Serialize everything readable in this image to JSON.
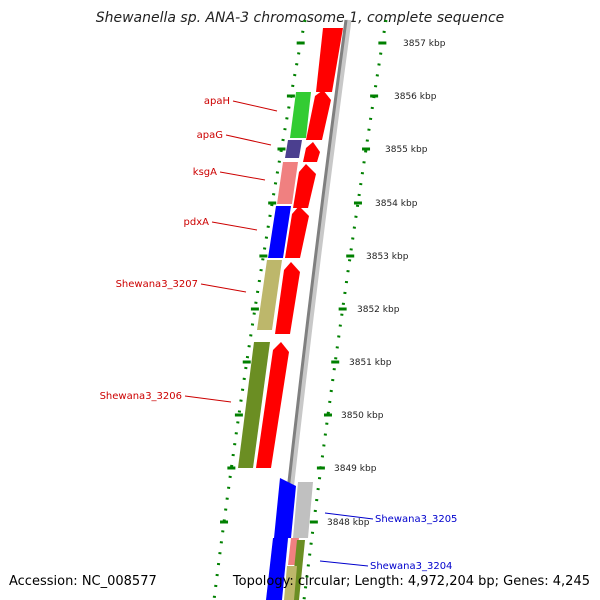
{
  "title": "Shewanella sp. ANA-3 chromosome 1, complete sequence",
  "footer": {
    "accession": "Accession: NC_008577",
    "topology": "Topology: circular; Length: 4,972,204 bp; Genes: 4,245"
  },
  "ruler": {
    "ticks": [
      "3857 kbp",
      "3856 kbp",
      "3855 kbp",
      "3854 kbp",
      "3853 kbp",
      "3852 kbp",
      "3851 kbp",
      "3850 kbp",
      "3849 kbp",
      "3848 kbp"
    ]
  },
  "colors": {
    "cds_red": "#ff0000",
    "apaH": "#33cc33",
    "apaG": "#4b3f8f",
    "ksgA": "#f08080",
    "pdxA": "#0000ff",
    "Shewana3_3207": "#bdb76b",
    "Shewana3_3206": "#6b8e23",
    "Shewana3_3205": "#0000ff",
    "gray_gene": "#c0c0c0",
    "backbone": "#808080",
    "ruler_dots": "#008000",
    "label_red": "#cc0000",
    "label_blue": "#0000cc"
  },
  "genes": [
    {
      "name": "apaH",
      "label": "apaH",
      "color": "#33cc33",
      "side": "left"
    },
    {
      "name": "apaG",
      "label": "apaG",
      "color": "#4b3f8f",
      "side": "left"
    },
    {
      "name": "ksgA",
      "label": "ksgA",
      "color": "#f08080",
      "side": "left"
    },
    {
      "name": "pdxA",
      "label": "pdxA",
      "color": "#0000ff",
      "side": "left"
    },
    {
      "name": "Shewana3_3207",
      "label": "Shewana3_3207",
      "color": "#bdb76b",
      "side": "left"
    },
    {
      "name": "Shewana3_3206",
      "label": "Shewana3_3206",
      "color": "#6b8e23",
      "side": "left"
    },
    {
      "name": "Shewana3_3205",
      "label": "Shewana3_3205",
      "color": "#0000ff",
      "side": "right"
    },
    {
      "name": "Shewana3_3204",
      "label": "Shewana3_3204",
      "color": "#6b8e23",
      "side": "right"
    }
  ]
}
